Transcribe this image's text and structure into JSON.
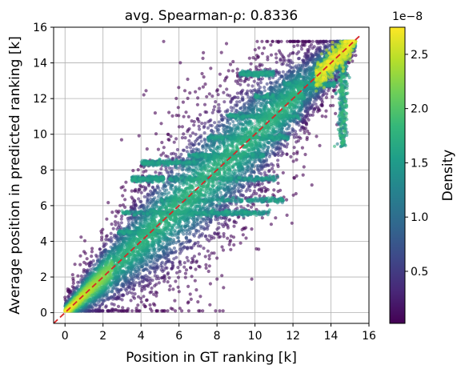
{
  "chart_data": {
    "type": "scatter",
    "title": "avg. Spearman-ρ: 0.8336",
    "xlabel": "Position in GT ranking [k]",
    "ylabel": "Average position in predicted ranking [k]",
    "xlim": [
      -0.6,
      16
    ],
    "ylim": [
      -0.6,
      16
    ],
    "x_ticks": [
      0,
      2,
      4,
      6,
      8,
      10,
      12,
      14,
      16
    ],
    "y_ticks": [
      0,
      2,
      4,
      6,
      8,
      10,
      12,
      14,
      16
    ],
    "x_tick_labels": [
      "0",
      "2",
      "4",
      "6",
      "8",
      "10",
      "12",
      "14",
      "16"
    ],
    "y_tick_labels": [
      "0",
      "2",
      "4",
      "6",
      "8",
      "10",
      "12",
      "14",
      "16"
    ],
    "grid": true,
    "reference_line": {
      "from": [
        -0.6,
        -0.6
      ],
      "to": [
        15.6,
        15.6
      ],
      "color": "#d62728",
      "style": "dashed"
    },
    "point_count_approx": 15500,
    "point_alpha": 0.6,
    "colormap": "viridis",
    "colorbar": {
      "label": "Density",
      "multiplier": "1e−8",
      "min": 0.02,
      "max": 2.75,
      "ticks": [
        0.5,
        1.0,
        1.5,
        2.0,
        2.5
      ],
      "tick_labels": [
        "0.5",
        "1.0",
        "1.5",
        "2.0",
        "2.5"
      ]
    },
    "colors": {
      "viridis": [
        "#440154",
        "#482878",
        "#3e4989",
        "#31688e",
        "#26828e",
        "#1f9e89",
        "#35b779",
        "#6ece58",
        "#b5de2b",
        "#fde725"
      ]
    }
  }
}
